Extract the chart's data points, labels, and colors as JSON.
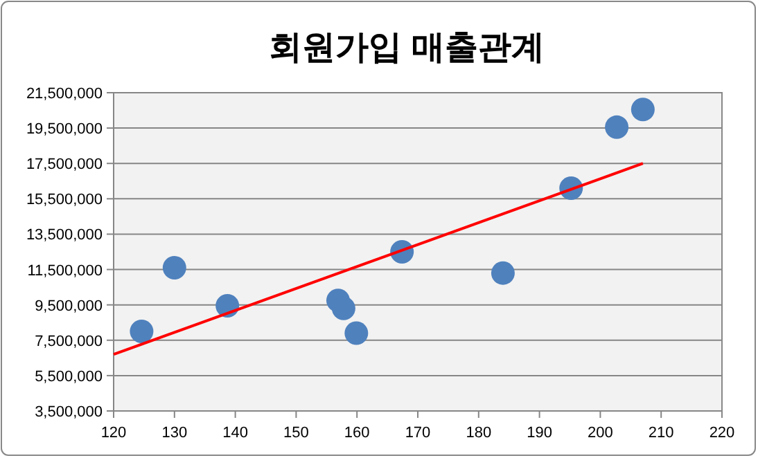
{
  "chart_data": {
    "type": "scatter",
    "title": "회원가입 매출관계",
    "series": [
      {
        "color": "#4f81bd",
        "marker": "circle",
        "x": [
          124.6,
          130.0,
          138.7,
          156.9,
          157.8,
          159.9,
          167.4,
          184.0,
          195.2,
          202.7,
          207.0
        ],
        "values": [
          8000000,
          11600000,
          9450000,
          9750000,
          9300000,
          7900000,
          12500000,
          11300000,
          16100000,
          19550000,
          20550000
        ]
      },
      {
        "type": "line",
        "color": "#ff0000",
        "marker": "none",
        "line_style": "solid",
        "x": [
          120,
          207
        ],
        "values": [
          6700000,
          17500000
        ]
      }
    ],
    "xlim": [
      120,
      220
    ],
    "xticks": [
      120,
      130,
      140,
      150,
      160,
      170,
      180,
      190,
      200,
      210,
      220
    ],
    "ylim": [
      3500000,
      21500000
    ],
    "yticks": [
      {
        "value": 3500000,
        "label": "3,500,000"
      },
      {
        "value": 5500000,
        "label": "5,500,000"
      },
      {
        "value": 7500000,
        "label": "7,500,000"
      },
      {
        "value": 9500000,
        "label": "9,500,000"
      },
      {
        "value": 11500000,
        "label": "11,500,000"
      },
      {
        "value": 13500000,
        "label": "13,500,000"
      },
      {
        "value": 15500000,
        "label": "15,500,000"
      },
      {
        "value": 17500000,
        "label": "17,500,000"
      },
      {
        "value": 19500000,
        "label": "19,500,000"
      },
      {
        "value": 21500000,
        "label": "21,500,000"
      }
    ],
    "grid": "y"
  }
}
